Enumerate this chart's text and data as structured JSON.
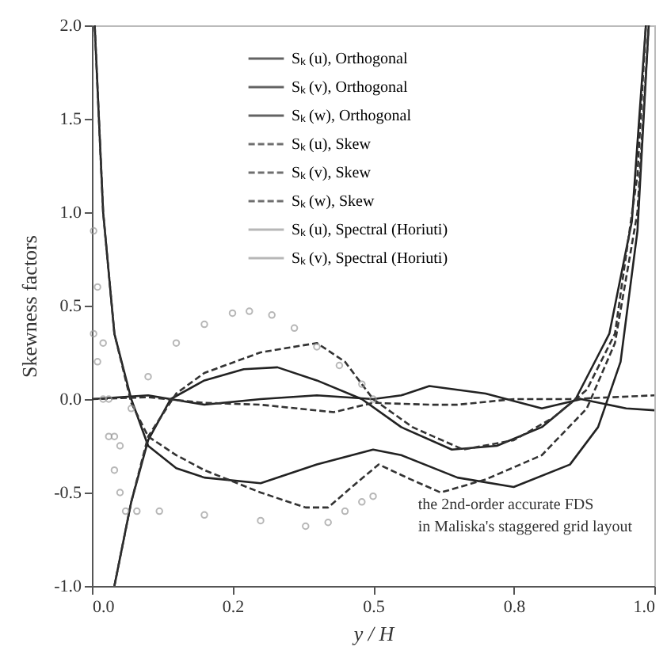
{
  "chart_data": {
    "type": "line",
    "xlabel": "y / H",
    "ylabel": "Skewness factors",
    "xlim": [
      0,
      1
    ],
    "ylim": [
      -1,
      2
    ],
    "xticks": [
      {
        "value": 0,
        "label": "0.0"
      },
      {
        "value": 0.25,
        "label": "0.2"
      },
      {
        "value": 0.5,
        "label": "0.5"
      },
      {
        "value": 0.75,
        "label": "0.8"
      },
      {
        "value": 1,
        "label": "1.0"
      }
    ],
    "yticks": [
      {
        "value": -1,
        "label": "-1.0"
      },
      {
        "value": -0.5,
        "label": "-0.5"
      },
      {
        "value": 0,
        "label": "0.0"
      },
      {
        "value": 0.5,
        "label": "0.5"
      },
      {
        "value": 1,
        "label": "1.0"
      },
      {
        "value": 1.5,
        "label": "1.5"
      },
      {
        "value": 2,
        "label": "2.0"
      }
    ],
    "legend": "top",
    "grid": false,
    "annotations": [
      "the 2nd-order accurate FDS",
      "in Maliska's staggered grid layout"
    ],
    "series": [
      {
        "name": "Sₖ (u), Orthogonal",
        "color": "#222222",
        "line_style": "solid",
        "x": [
          0.005,
          0.02,
          0.04,
          0.07,
          0.1,
          0.15,
          0.2,
          0.3,
          0.4,
          0.5,
          0.55,
          0.65,
          0.75,
          0.85,
          0.9,
          0.94,
          0.97,
          0.99
        ],
        "values": [
          2.0,
          1.0,
          0.35,
          0.0,
          -0.25,
          -0.37,
          -0.42,
          -0.45,
          -0.35,
          -0.27,
          -0.3,
          -0.42,
          -0.47,
          -0.35,
          -0.15,
          0.2,
          0.9,
          2.0
        ]
      },
      {
        "name": "Sₖ (v), Orthogonal",
        "color": "#222222",
        "line_style": "solid",
        "x": [
          0.04,
          0.07,
          0.1,
          0.14,
          0.2,
          0.27,
          0.33,
          0.4,
          0.48,
          0.55,
          0.64,
          0.72,
          0.8,
          0.86,
          0.92,
          0.96,
          0.985
        ],
        "values": [
          -1.0,
          -0.55,
          -0.22,
          0.0,
          0.1,
          0.16,
          0.17,
          0.1,
          0.0,
          -0.15,
          -0.27,
          -0.25,
          -0.15,
          0.0,
          0.35,
          0.95,
          2.0
        ]
      },
      {
        "name": "Sₖ (w), Orthogonal",
        "color": "#222222",
        "line_style": "solid",
        "x": [
          0,
          0.1,
          0.2,
          0.3,
          0.4,
          0.5,
          0.55,
          0.6,
          0.7,
          0.8,
          0.87,
          0.95,
          1.0
        ],
        "values": [
          0.0,
          0.02,
          -0.03,
          0.0,
          0.02,
          0.0,
          0.02,
          0.07,
          0.03,
          -0.05,
          0.0,
          -0.05,
          -0.06
        ]
      },
      {
        "name": "Sₖ (u), Skew",
        "color": "#333333",
        "line_style": "dashed",
        "x": [
          0.005,
          0.02,
          0.04,
          0.07,
          0.1,
          0.15,
          0.2,
          0.3,
          0.38,
          0.42,
          0.47,
          0.51,
          0.56,
          0.62,
          0.7,
          0.8,
          0.88,
          0.93,
          0.97,
          0.99
        ],
        "values": [
          2.0,
          1.0,
          0.35,
          -0.02,
          -0.2,
          -0.3,
          -0.38,
          -0.5,
          -0.58,
          -0.58,
          -0.45,
          -0.35,
          -0.42,
          -0.5,
          -0.43,
          -0.3,
          -0.05,
          0.3,
          1.0,
          2.0
        ]
      },
      {
        "name": "Sₖ (v), Skew",
        "color": "#333333",
        "line_style": "dashed",
        "x": [
          0.04,
          0.07,
          0.1,
          0.15,
          0.2,
          0.3,
          0.4,
          0.45,
          0.5,
          0.57,
          0.66,
          0.75,
          0.82,
          0.88,
          0.93,
          0.97,
          0.985
        ],
        "values": [
          -1.0,
          -0.55,
          -0.2,
          0.03,
          0.14,
          0.25,
          0.3,
          0.2,
          0.0,
          -0.15,
          -0.27,
          -0.22,
          -0.1,
          0.05,
          0.35,
          1.2,
          2.0
        ]
      },
      {
        "name": "Sₖ (w), Skew",
        "color": "#333333",
        "line_style": "dashed",
        "x": [
          0,
          0.1,
          0.2,
          0.3,
          0.43,
          0.5,
          0.6,
          0.65,
          0.75,
          0.85,
          1.0
        ],
        "values": [
          0.0,
          0.01,
          -0.02,
          -0.03,
          -0.07,
          -0.02,
          -0.03,
          -0.03,
          0.0,
          0.0,
          0.02
        ]
      },
      {
        "name": "Sₖ (u), Spectral (Horiuti)",
        "color": "#999999",
        "type": "scatter",
        "marker": "circle",
        "x": [
          0.003,
          0.01,
          0.02,
          0.03,
          0.04,
          0.05,
          0.07,
          0.1,
          0.15,
          0.2,
          0.25,
          0.28,
          0.32,
          0.36,
          0.4,
          0.44,
          0.48,
          0.5
        ],
        "values": [
          0.9,
          0.6,
          0.3,
          0.0,
          -0.2,
          -0.25,
          -0.05,
          0.12,
          0.3,
          0.4,
          0.46,
          0.47,
          0.45,
          0.38,
          0.28,
          0.18,
          0.08,
          0.0
        ]
      },
      {
        "name": "Sₖ (v), Spectral (Horiuti)",
        "color": "#999999",
        "type": "scatter",
        "marker": "circle",
        "x": [
          0.003,
          0.01,
          0.02,
          0.03,
          0.04,
          0.05,
          0.06,
          0.08,
          0.12,
          0.2,
          0.3,
          0.38,
          0.42,
          0.45,
          0.48,
          0.5
        ],
        "values": [
          0.35,
          0.2,
          0.0,
          -0.2,
          -0.38,
          -0.5,
          -0.6,
          -0.6,
          -0.6,
          -0.62,
          -0.65,
          -0.68,
          -0.66,
          -0.6,
          -0.55,
          -0.52
        ]
      }
    ]
  }
}
